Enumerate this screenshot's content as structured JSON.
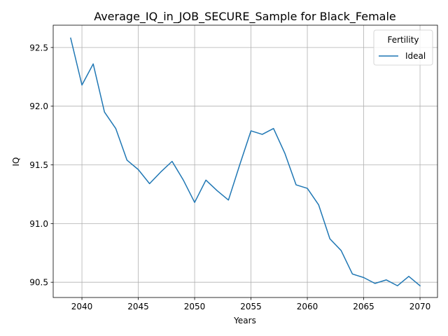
{
  "chart_data": {
    "type": "line",
    "title": "Average_IQ_in_JOB_SECURE_Sample for Black_Female",
    "xlabel": "Years",
    "ylabel": "IQ",
    "xlim": [
      2037.45,
      2071.55
    ],
    "ylim": [
      90.37,
      92.69
    ],
    "xticks": [
      2040,
      2045,
      2050,
      2055,
      2060,
      2065,
      2070
    ],
    "yticks": [
      90.5,
      91.0,
      91.5,
      92.0,
      92.5
    ],
    "ytick_labels": [
      "90.5",
      "91.0",
      "91.5",
      "92.0",
      "92.5"
    ],
    "grid": true,
    "legend": {
      "title": "Fertility",
      "placement": "top-right"
    },
    "series": [
      {
        "name": "Ideal",
        "color": "#1f77b4",
        "x": [
          2039,
          2040,
          2041,
          2042,
          2043,
          2044,
          2045,
          2046,
          2047,
          2048,
          2049,
          2050,
          2051,
          2052,
          2053,
          2054,
          2055,
          2056,
          2057,
          2058,
          2059,
          2060,
          2061,
          2062,
          2063,
          2064,
          2065,
          2066,
          2067,
          2068,
          2069,
          2070
        ],
        "values": [
          92.58,
          92.18,
          92.36,
          91.95,
          91.81,
          91.54,
          91.46,
          91.34,
          91.44,
          91.53,
          91.37,
          91.18,
          91.37,
          91.28,
          91.2,
          91.5,
          91.79,
          91.76,
          91.81,
          91.6,
          91.33,
          91.3,
          91.16,
          90.87,
          90.77,
          90.57,
          90.54,
          90.49,
          90.52,
          90.47,
          90.55,
          90.47
        ]
      }
    ]
  }
}
